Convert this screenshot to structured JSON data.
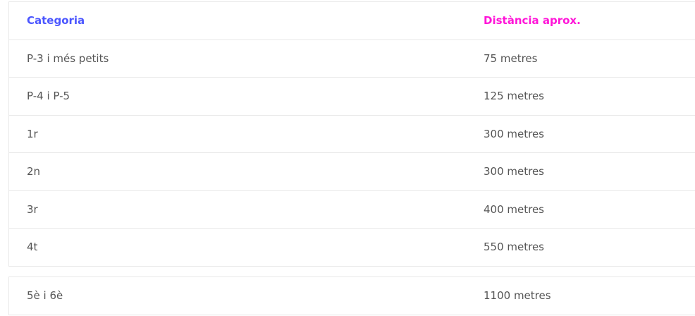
{
  "colors": {
    "category_header": "#4a55ff",
    "distance_header": "#ff14d8",
    "text": "#555555"
  },
  "table": {
    "headers": [
      "Categoria",
      "Distància aprox."
    ],
    "rows": [
      [
        "P-3 i més petits",
        "75 metres"
      ],
      [
        "P-4 i P-5",
        "125 metres"
      ],
      [
        "1r",
        "300 metres"
      ],
      [
        "2n",
        "300 metres"
      ],
      [
        "3r",
        "400 metres"
      ],
      [
        "4t",
        "550 metres"
      ]
    ]
  },
  "table2": {
    "rows": [
      [
        "5è i 6è",
        "1100 metres"
      ]
    ]
  }
}
